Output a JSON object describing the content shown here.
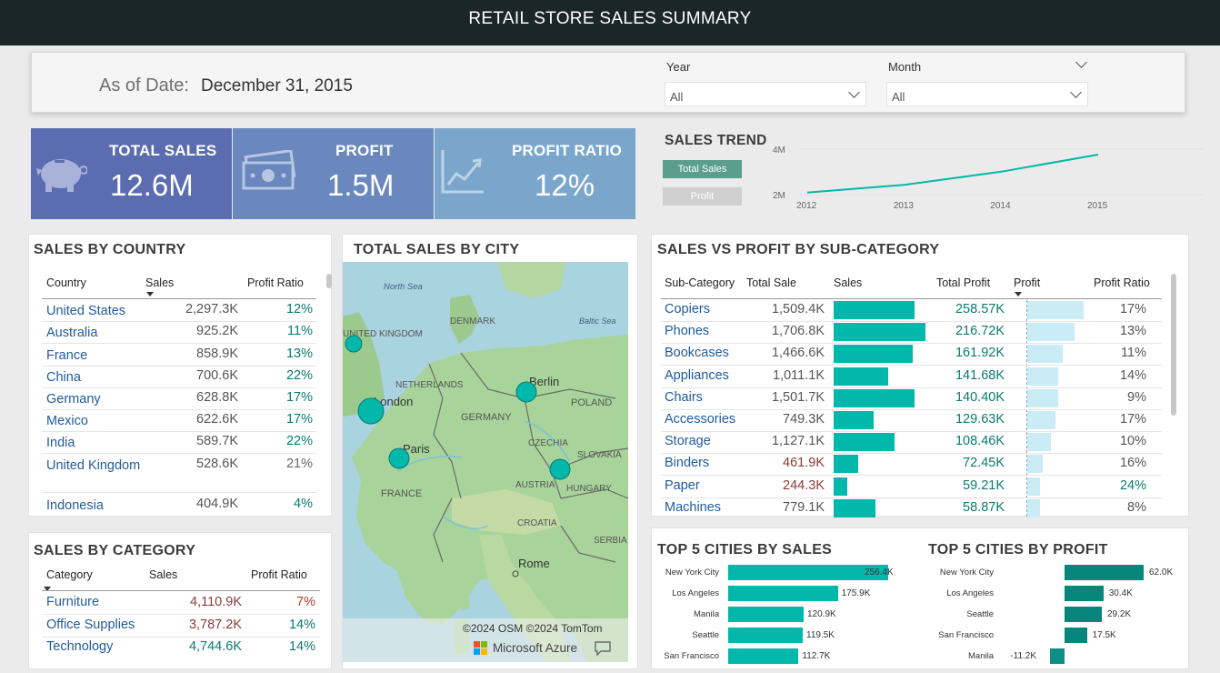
{
  "header": {
    "title": "RETAIL STORE SALES SUMMARY"
  },
  "filters": {
    "as_of_label": "As of Date:",
    "as_of_value": "December 31, 2015",
    "year": {
      "label": "Year",
      "value": "All"
    },
    "month": {
      "label": "Month",
      "value": "All"
    }
  },
  "kpis": {
    "total_sales": {
      "label": "TOTAL SALES",
      "value": "12.6M",
      "icon": "piggy-bank-icon"
    },
    "profit": {
      "label": "PROFIT",
      "value": "1.5M",
      "icon": "money-bills-icon"
    },
    "profit_ratio": {
      "label": "PROFIT RATIO",
      "value": "12%",
      "icon": "line-chart-icon"
    }
  },
  "colors": {
    "accent": "#01b8aa",
    "sales_card": "#5b6db0",
    "profit_card": "#6a87be",
    "ratio_card": "#7ba6cc",
    "profit_bar": "#c9ecf7",
    "dark_teal": "#07877c"
  },
  "sales_trend": {
    "title": "SALES TREND",
    "buttons": [
      "Total Sales",
      "Profit"
    ]
  },
  "country": {
    "title": "SALES BY COUNTRY",
    "columns": [
      "Country",
      "Sales",
      "Profit Ratio"
    ],
    "rows": [
      {
        "country": "United States",
        "sales": "2,297.3K",
        "ratio": "12%"
      },
      {
        "country": "Australia",
        "sales": "925.2K",
        "ratio": "11%"
      },
      {
        "country": "France",
        "sales": "858.9K",
        "ratio": "13%"
      },
      {
        "country": "China",
        "sales": "700.6K",
        "ratio": "22%"
      },
      {
        "country": "Germany",
        "sales": "628.8K",
        "ratio": "17%"
      },
      {
        "country": "Mexico",
        "sales": "622.6K",
        "ratio": "17%"
      },
      {
        "country": "India",
        "sales": "589.7K",
        "ratio": "22%"
      },
      {
        "country": "United Kingdom",
        "sales": "528.6K",
        "ratio": "21%"
      },
      {
        "country": "Indonesia",
        "sales": "404.9K",
        "ratio": "4%"
      }
    ]
  },
  "category": {
    "title": "SALES BY CATEGORY",
    "columns": [
      "Category",
      "Sales",
      "Profit Ratio"
    ],
    "rows": [
      {
        "category": "Furniture",
        "sales": "4,110.9K",
        "ratio": "7%"
      },
      {
        "category": "Office Supplies",
        "sales": "3,787.2K",
        "ratio": "14%"
      },
      {
        "category": "Technology",
        "sales": "4,744.6K",
        "ratio": "14%"
      }
    ]
  },
  "map": {
    "title": "TOTAL SALES BY CITY",
    "labels": [
      "North Sea",
      "UNITED KINGDOM",
      "DENMARK",
      "Baltic Sea",
      "NETHERLANDS",
      "London",
      "Berlin",
      "POLAND",
      "GERMANY",
      "CZECHIA",
      "SLOVAKIA",
      "Paris",
      "AUSTRIA",
      "HUNGARY",
      "FRANCE",
      "CROATIA",
      "SERBIA",
      "Rome"
    ],
    "attribution": "©2024 OSM ©2024 TomTom",
    "brand": "Microsoft Azure"
  },
  "subcategory": {
    "title": "SALES VS PROFIT BY SUB-CATEGORY",
    "columns": [
      "Sub-Category",
      "Total Sale",
      "Sales",
      "Total Profit",
      "Profit",
      "Profit Ratio"
    ],
    "rows": [
      {
        "name": "Copiers",
        "total_sale": "1,509.4K",
        "sales": 1509.4,
        "total_profit": "258.57K",
        "profit": 258.57,
        "ratio": "17%"
      },
      {
        "name": "Phones",
        "total_sale": "1,706.8K",
        "sales": 1706.8,
        "total_profit": "216.72K",
        "profit": 216.72,
        "ratio": "13%"
      },
      {
        "name": "Bookcases",
        "total_sale": "1,466.6K",
        "sales": 1466.6,
        "total_profit": "161.92K",
        "profit": 161.92,
        "ratio": "11%"
      },
      {
        "name": "Appliances",
        "total_sale": "1,011.1K",
        "sales": 1011.1,
        "total_profit": "141.68K",
        "profit": 141.68,
        "ratio": "14%"
      },
      {
        "name": "Chairs",
        "total_sale": "1,501.7K",
        "sales": 1501.7,
        "total_profit": "140.40K",
        "profit": 140.4,
        "ratio": "9%"
      },
      {
        "name": "Accessories",
        "total_sale": "749.3K",
        "sales": 749.3,
        "total_profit": "129.63K",
        "profit": 129.63,
        "ratio": "17%"
      },
      {
        "name": "Storage",
        "total_sale": "1,127.1K",
        "sales": 1127.1,
        "total_profit": "108.46K",
        "profit": 108.46,
        "ratio": "10%"
      },
      {
        "name": "Binders",
        "total_sale": "461.9K",
        "sales": 461.9,
        "total_profit": "72.45K",
        "profit": 72.45,
        "ratio": "16%"
      },
      {
        "name": "Paper",
        "total_sale": "244.3K",
        "sales": 244.3,
        "total_profit": "59.21K",
        "profit": 59.21,
        "ratio": "24%"
      },
      {
        "name": "Machines",
        "total_sale": "779.1K",
        "sales": 779.1,
        "total_profit": "58.87K",
        "profit": 58.87,
        "ratio": "8%"
      }
    ]
  },
  "chart_data": [
    {
      "type": "line",
      "title": "SALES TREND",
      "x": [
        "2012",
        "2013",
        "2014",
        "2015"
      ],
      "series": [
        {
          "name": "Total Sales",
          "values": [
            2.3,
            2.7,
            3.4,
            4.3
          ]
        }
      ],
      "ylim": [
        1.9,
        4.3
      ],
      "yticks": [
        "4M",
        "2M"
      ],
      "grid": true
    },
    {
      "type": "bar",
      "title": "TOP 5 CITIES BY SALES",
      "categories": [
        "New York City",
        "Los Angeles",
        "Manila",
        "Seattle",
        "San Francisco"
      ],
      "values": [
        256.4,
        175.9,
        120.9,
        119.5,
        112.7
      ],
      "labels": [
        "256.4K",
        "175.9K",
        "120.9K",
        "119.5K",
        "112.7K"
      ]
    },
    {
      "type": "bar",
      "title": "TOP 5 CITIES BY PROFIT",
      "categories": [
        "New York City",
        "Los Angeles",
        "Seattle",
        "San Francisco",
        "Manila"
      ],
      "values": [
        62.0,
        30.4,
        29.2,
        17.5,
        -11.2
      ],
      "labels": [
        "62.0K",
        "30.4K",
        "29.2K",
        "17.5K",
        "-11.2K"
      ]
    }
  ]
}
